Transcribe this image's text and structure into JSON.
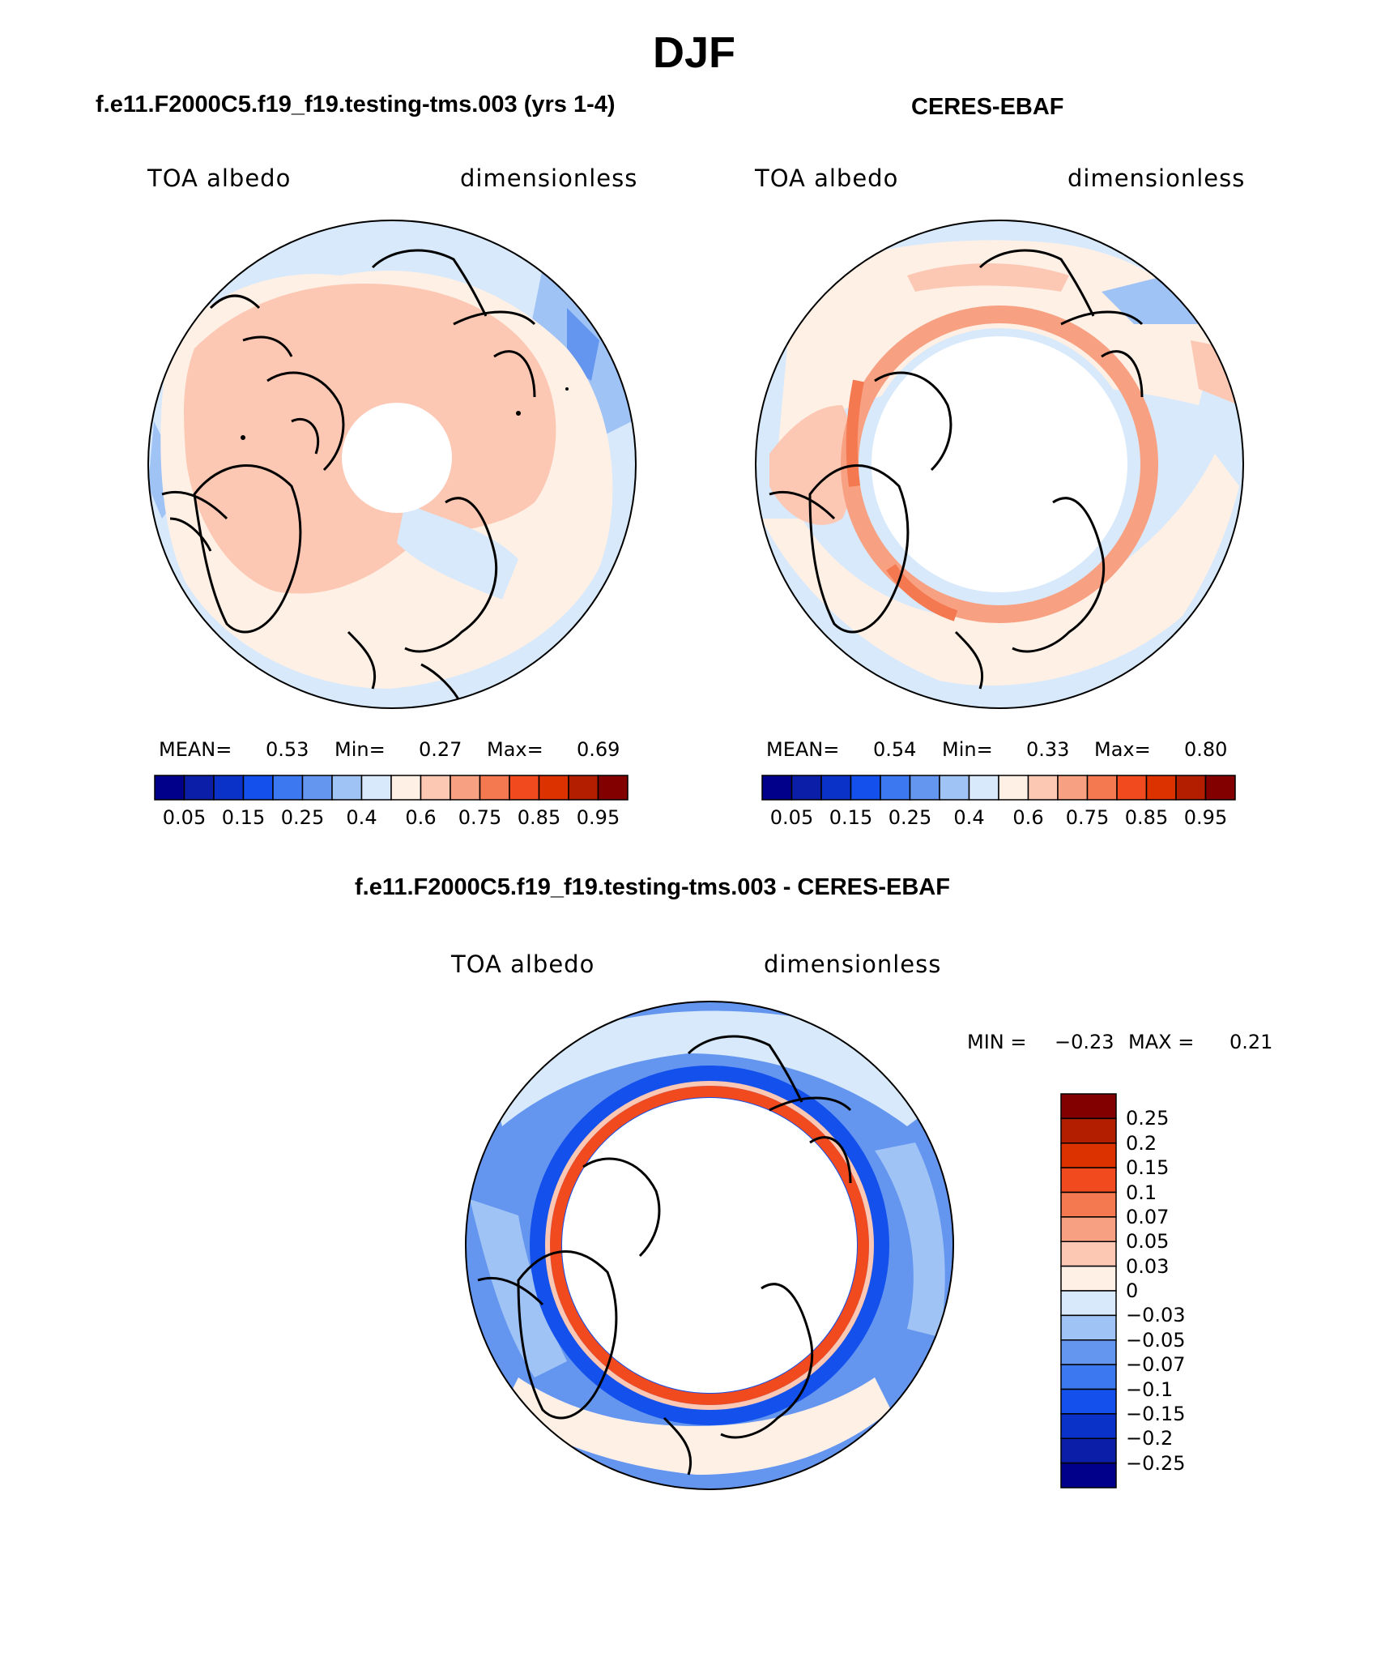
{
  "figure": {
    "title": "DJF"
  },
  "panel_model": {
    "title": "f.e11.F2000C5.f19_f19.testing-tms.003 (yrs 1-4)",
    "variable": "TOA albedo",
    "units": "dimensionless",
    "mean_label": "MEAN=",
    "mean": "0.53",
    "min_label": "Min=",
    "min": "0.27",
    "max_label": "Max=",
    "max": "0.69"
  },
  "panel_obs": {
    "title": "CERES-EBAF",
    "variable": "TOA albedo",
    "units": "dimensionless",
    "mean_label": "MEAN=",
    "mean": "0.54",
    "min_label": "Min=",
    "min": "0.33",
    "max_label": "Max=",
    "max": "0.80"
  },
  "panel_diff": {
    "title": "f.e11.F2000C5.f19_f19.testing-tms.003 - CERES-EBAF",
    "variable": "TOA albedo",
    "units": "dimensionless",
    "min_label": "MIN =",
    "min": "−0.23",
    "max_label": "MAX =",
    "max": "0.21"
  },
  "colorbar_abs": {
    "colors": [
      "#00008b",
      "#0a1ea8",
      "#0a32c8",
      "#1450eb",
      "#3c78f0",
      "#6496f0",
      "#a0c3f5",
      "#d7e9fa",
      "#fff0e6",
      "#fcc8b4",
      "#f8a082",
      "#f47850",
      "#f04a1e",
      "#dc3200",
      "#b41e00",
      "#820000"
    ],
    "tick_labels": [
      "0.05",
      "0.15",
      "0.25",
      "0.4",
      "0.6",
      "0.75",
      "0.85",
      "0.95"
    ]
  },
  "colorbar_diff": {
    "colors": [
      "#820000",
      "#b41e00",
      "#dc3200",
      "#f04a1e",
      "#f47850",
      "#f8a082",
      "#fcc8b4",
      "#fff0e6",
      "#d7e9fa",
      "#a0c3f5",
      "#6496f0",
      "#3c78f0",
      "#1450eb",
      "#0a32c8",
      "#0a1ea8",
      "#00008b"
    ],
    "tick_labels": [
      "0.25",
      "0.2",
      "0.15",
      "0.1",
      "0.07",
      "0.05",
      "0.03",
      "0",
      "−0.03",
      "−0.05",
      "−0.07",
      "−0.1",
      "−0.15",
      "−0.2",
      "−0.25"
    ]
  },
  "colors": {
    "light_blue": "#d7e9fa",
    "pale_blue": "#a0c3f5",
    "mid_blue": "#6496f0",
    "blue": "#1450eb",
    "peach": "#fff0e6",
    "salmon": "#fcc8b4",
    "orange_red": "#f04a1e",
    "coast": "#000000"
  }
}
